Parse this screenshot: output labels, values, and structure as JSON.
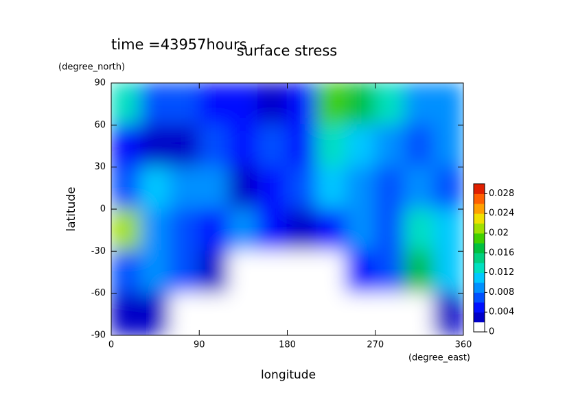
{
  "chart_data": {
    "type": "heatmap",
    "title": "surface stress",
    "subtitle": "time =43957hours",
    "x_label": "longitude",
    "y_label": "latitude",
    "x_units": "(degree_east)",
    "y_units": "(degree_north)",
    "xlim": [
      0,
      360
    ],
    "xticks": [
      0,
      90,
      180,
      270,
      360
    ],
    "ylim": [
      -90,
      90
    ],
    "yticks": [
      -90,
      -60,
      -30,
      0,
      30,
      60,
      90
    ],
    "x": [
      0,
      30,
      60,
      90,
      120,
      150,
      180,
      210,
      240,
      270,
      300,
      330,
      360
    ],
    "y": [
      90,
      60,
      30,
      0,
      -30,
      -60,
      -90
    ],
    "values": [
      [
        0.012,
        0.006,
        0.006,
        0.004,
        0.004,
        0.003,
        0.004,
        0.018,
        0.016,
        0.012,
        0.008,
        0.008
      ],
      [
        0.004,
        0.002,
        0.003,
        0.006,
        0.004,
        0.006,
        0.004,
        0.012,
        0.01,
        0.008,
        0.006,
        0.008
      ],
      [
        0.006,
        0.01,
        0.008,
        0.008,
        0.002,
        0.004,
        0.006,
        0.01,
        0.008,
        0.006,
        0.008,
        0.006
      ],
      [
        0.02,
        0.008,
        0.006,
        0.004,
        0.008,
        0.004,
        0.002,
        0.004,
        0.008,
        0.006,
        0.012,
        0.01
      ],
      [
        0.006,
        0.008,
        0.006,
        0.002,
        0,
        0,
        0,
        0,
        0.004,
        0.006,
        0.016,
        0.01
      ],
      [
        0.002,
        0.002,
        0,
        0,
        0,
        0,
        0,
        0,
        0,
        0,
        0,
        0.002
      ]
    ],
    "clim": [
      0,
      0.03
    ],
    "cticks": [
      0,
      0.004,
      0.008,
      0.012,
      0.016,
      0.02,
      0.024,
      0.028
    ],
    "colors": [
      "#ffffff",
      "#0000c8",
      "#0010ff",
      "#0050ff",
      "#0090ff",
      "#00c8ff",
      "#00e0c0",
      "#00d080",
      "#00c040",
      "#40d000",
      "#a0e000",
      "#f0e000",
      "#ffa000",
      "#ff6000",
      "#e02000"
    ]
  }
}
